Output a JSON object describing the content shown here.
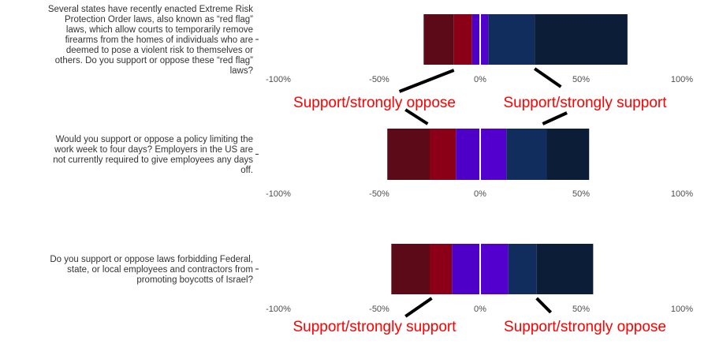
{
  "chart_data": {
    "type": "bar",
    "orientation": "horizontal-diverging-stacked",
    "x_ticks": [
      "-100%",
      "-50%",
      "0%",
      "50%",
      "100%"
    ],
    "x_tick_values": [
      -100,
      -50,
      0,
      50,
      100
    ],
    "xlim": [
      -100,
      100
    ],
    "grid": false,
    "colors": [
      "#5c0a17",
      "#8b0016",
      "#4e00c8",
      "#5300cf",
      "#112d5e",
      "#0b1d37"
    ],
    "zero_line_color": "#ffffff",
    "annotation_color": "#ff0000",
    "panels": [
      {
        "question": [
          "Several states have recently enacted Extreme Risk",
          "Protection Order laws, also known as “red flag”",
          "laws, which allow courts to temporarily remove",
          "firearms from the homes of individuals who are",
          "deemed to pose a violent risk to themselves or",
          "others. Do you support or oppose these “red flag”",
          "laws?"
        ],
        "segments": [
          [
            -28,
            -13
          ],
          [
            -13,
            -4
          ],
          [
            -4,
            0
          ],
          [
            0,
            4
          ],
          [
            4,
            27
          ],
          [
            27,
            73
          ]
        ],
        "annotations": [
          {
            "text": "Support/strongly oppose",
            "line_from": [
              -13,
              "bar"
            ],
            "line_to": [
              -40,
              "label"
            ]
          },
          {
            "text": "Support/strongly support",
            "line_from": [
              27,
              "bar"
            ],
            "line_to": [
              40,
              "label"
            ]
          }
        ]
      },
      {
        "question": [
          "Would you support or oppose a policy limiting the",
          "work week to four days? Employers in the US are",
          "not currently required to give employees any days",
          "off."
        ],
        "segments": [
          [
            -46,
            -25
          ],
          [
            -25,
            -12
          ],
          [
            -12,
            0
          ],
          [
            0,
            13
          ],
          [
            13,
            33
          ],
          [
            33,
            54
          ]
        ],
        "annotations": [
          {
            "text": "",
            "line_from": [
              -26,
              "bar"
            ],
            "line_to": [
              -37,
              "label"
            ]
          },
          {
            "text": "",
            "line_from": [
              31,
              "bar"
            ],
            "line_to": [
              43,
              "label"
            ]
          }
        ]
      },
      {
        "question": [
          "Do you support or oppose laws forbidding Federal,",
          "state, or local employees and contractors from",
          "promoting boycotts of Israel?"
        ],
        "segments": [
          [
            -44,
            -25
          ],
          [
            -25,
            -14
          ],
          [
            -14,
            0
          ],
          [
            0,
            14
          ],
          [
            14,
            28
          ],
          [
            28,
            56
          ]
        ],
        "annotations": [
          {
            "text": "Support/strongly support",
            "line_from": [
              -24,
              "bar"
            ],
            "line_to": [
              -37,
              "label"
            ]
          },
          {
            "text": "Support/strongly oppose",
            "line_from": [
              28,
              "bar"
            ],
            "line_to": [
              35,
              "label"
            ]
          }
        ]
      }
    ]
  }
}
